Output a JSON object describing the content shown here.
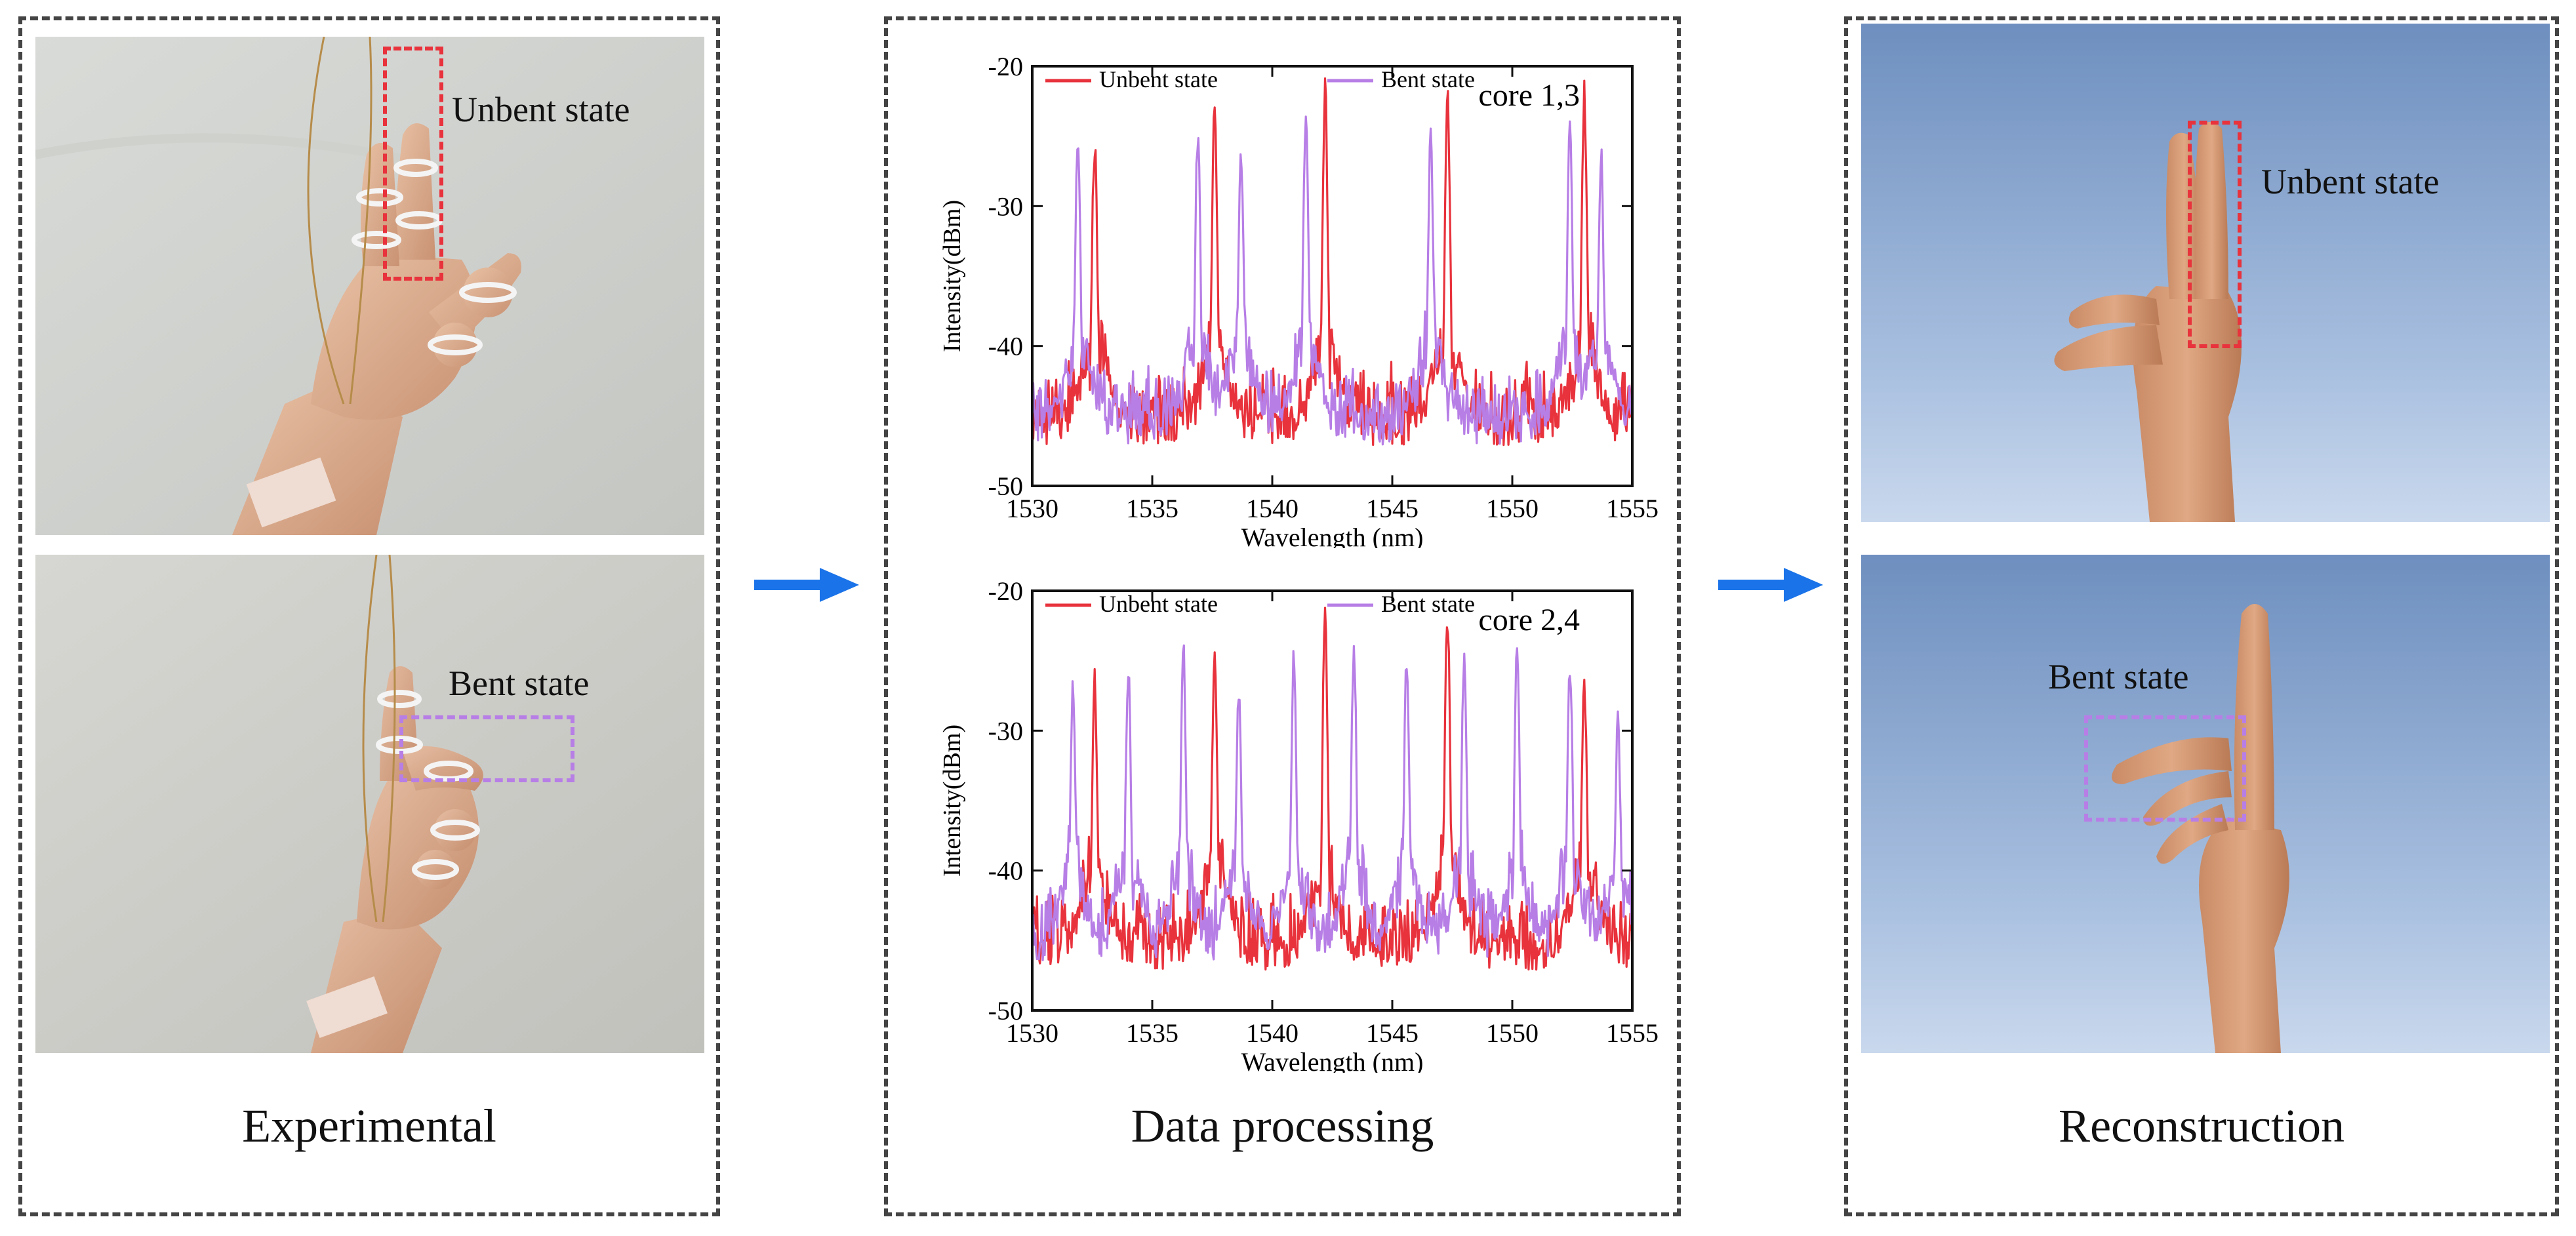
{
  "colors": {
    "unbent": "#e8323c",
    "bent": "#b77ee6",
    "arrow": "#1a73e8",
    "panel_border": "#444444"
  },
  "panels": {
    "experimental": {
      "caption": "Experimental"
    },
    "data_processing": {
      "caption": "Data processing"
    },
    "reconstruction": {
      "caption": "Reconstruction"
    }
  },
  "photos": {
    "exp_top_label": "Unbent state",
    "exp_bottom_label": "Bent state",
    "rec_top_label": "Unbent state",
    "rec_bottom_label": "Bent state"
  },
  "chart_data": [
    {
      "type": "line",
      "title": "core 1,3",
      "xlabel": "Wavelength (nm)",
      "ylabel": "Intensity(dBm)",
      "xlim": [
        1530,
        1555
      ],
      "ylim": [
        -50,
        -20
      ],
      "xticks": [
        1530,
        1535,
        1540,
        1545,
        1550,
        1555
      ],
      "yticks": [
        -20,
        -30,
        -40,
        -50
      ],
      "legend": [
        "Unbent state",
        "Bent state"
      ],
      "legend_placement": "top-left",
      "series": [
        {
          "name": "Unbent state",
          "peaks": [
            [
              1532.6,
              -25.5
            ],
            [
              1537.6,
              -23
            ],
            [
              1542.2,
              -21.5
            ],
            [
              1547.3,
              -21.8
            ],
            [
              1553.0,
              -22
            ]
          ]
        },
        {
          "name": "Bent state",
          "peaks": [
            [
              1531.9,
              -25
            ],
            [
              1536.9,
              -25
            ],
            [
              1538.7,
              -26
            ],
            [
              1541.4,
              -24
            ],
            [
              1546.6,
              -25
            ],
            [
              1552.4,
              -24
            ],
            [
              1553.7,
              -26.5
            ]
          ]
        }
      ]
    },
    {
      "type": "line",
      "title": "core 2,4",
      "xlabel": "Wavelength (nm)",
      "ylabel": "Intensity(dBm)",
      "xlim": [
        1530,
        1555
      ],
      "ylim": [
        -50,
        -20
      ],
      "xticks": [
        1530,
        1535,
        1540,
        1545,
        1550,
        1555
      ],
      "yticks": [
        -20,
        -30,
        -40,
        -50
      ],
      "legend": [
        "Unbent state",
        "Bent state"
      ],
      "legend_placement": "top-left",
      "series": [
        {
          "name": "Unbent state",
          "peaks": [
            [
              1532.6,
              -26
            ],
            [
              1537.6,
              -24.5
            ],
            [
              1542.2,
              -22
            ],
            [
              1547.3,
              -21.8
            ],
            [
              1553.0,
              -27
            ]
          ]
        },
        {
          "name": "Bent state",
          "peaks": [
            [
              1531.7,
              -26.5
            ],
            [
              1534.0,
              -26
            ],
            [
              1536.3,
              -24.5
            ],
            [
              1538.6,
              -27.5
            ],
            [
              1540.9,
              -24.5
            ],
            [
              1543.4,
              -24.5
            ],
            [
              1545.6,
              -24.5
            ],
            [
              1548.0,
              -24.5
            ],
            [
              1550.2,
              -24.5
            ],
            [
              1552.4,
              -25
            ],
            [
              1554.4,
              -29
            ]
          ]
        }
      ]
    }
  ]
}
